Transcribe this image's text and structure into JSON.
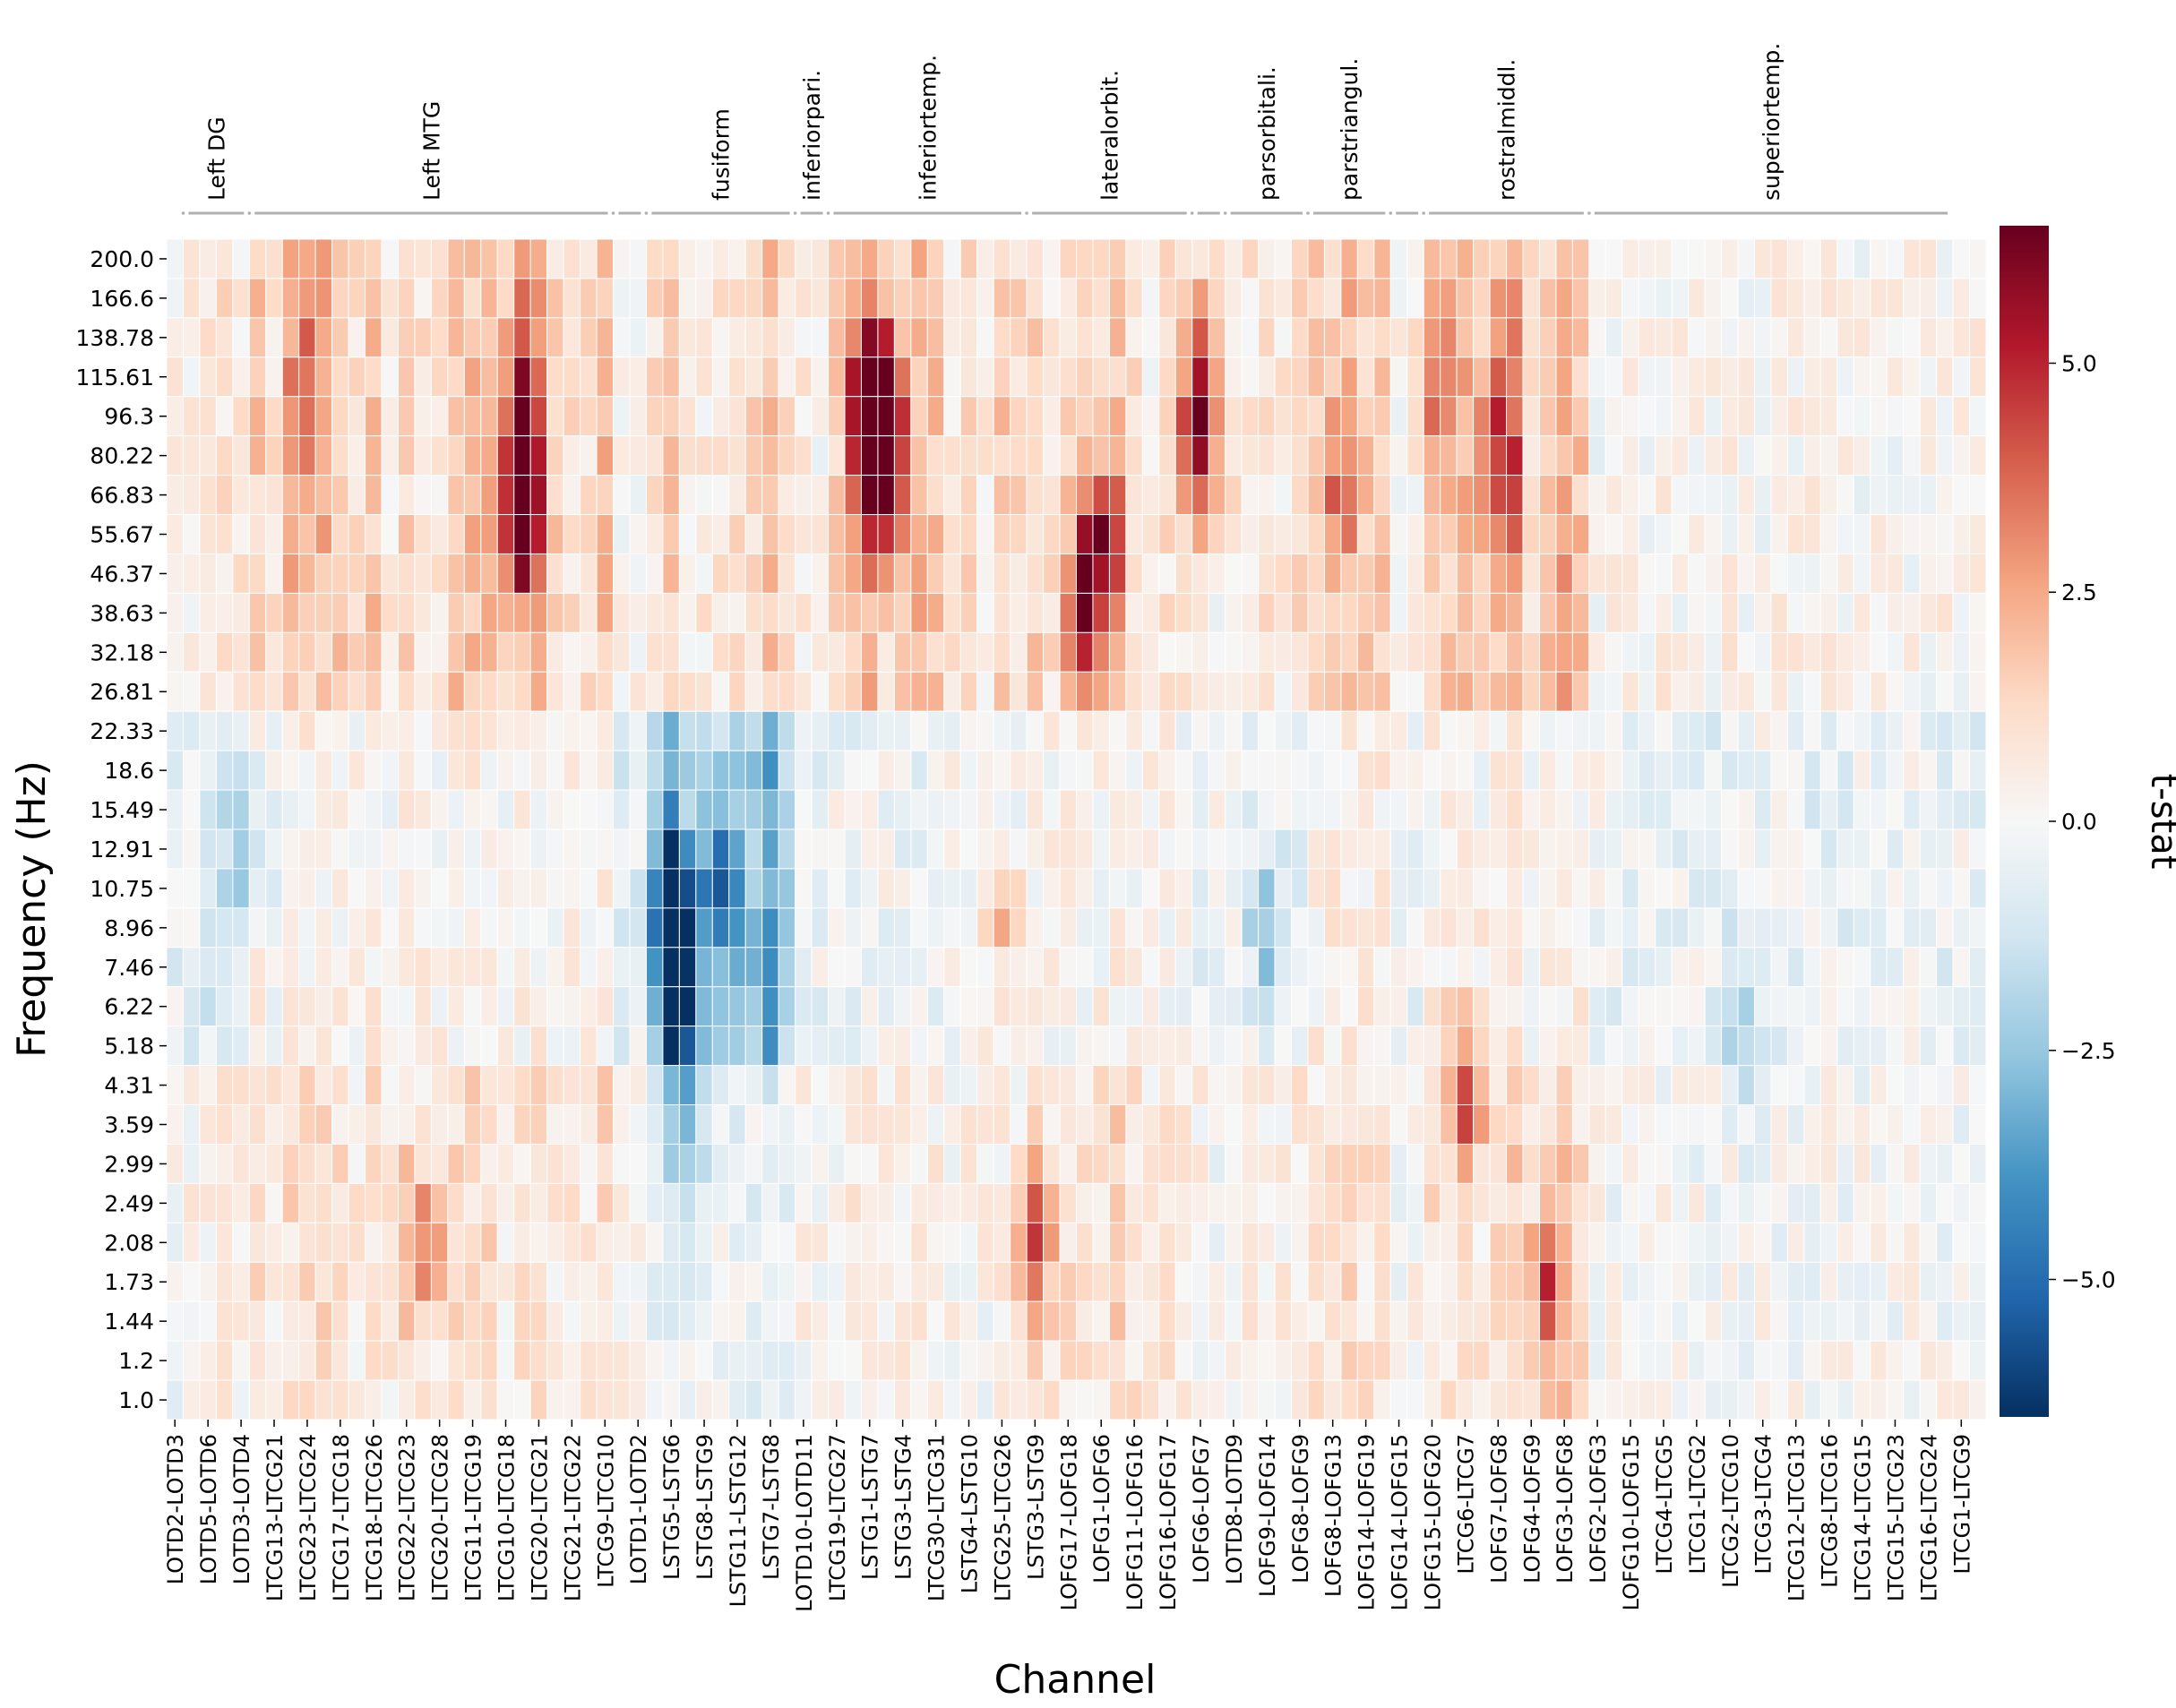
{
  "chart_data": {
    "type": "heatmap",
    "xlabel": "Channel",
    "ylabel": "Frequency (Hz)",
    "colorbar_label": "t-stat",
    "color_range": [
      -6.5,
      6.5
    ],
    "colorbar_ticks": [
      "5.0",
      "2.5",
      "0.0",
      "−2.5",
      "−5.0"
    ],
    "colorbar_tick_values": [
      5.0,
      2.5,
      0.0,
      -2.5,
      -5.0
    ],
    "colormap": [
      "#053061",
      "#2166ac",
      "#4393c3",
      "#92c5de",
      "#d1e5f0",
      "#f7f7f7",
      "#fddbc7",
      "#f4a582",
      "#d6604d",
      "#b2182b",
      "#67001f"
    ],
    "frequencies": [
      "200.0",
      "166.6",
      "138.78",
      "115.61",
      "96.3",
      "80.22",
      "66.83",
      "55.67",
      "46.37",
      "38.63",
      "32.18",
      "26.81",
      "22.33",
      "18.6",
      "15.49",
      "12.91",
      "10.75",
      "8.96",
      "7.46",
      "6.22",
      "5.18",
      "4.31",
      "3.59",
      "2.99",
      "2.49",
      "2.08",
      "1.73",
      "1.44",
      "1.2",
      "1.0"
    ],
    "channel_labels": [
      "LOTD2-LOTD3",
      "LOTD5-LOTD6",
      "LOTD3-LOTD4",
      "LTCG13-LTCG21",
      "LTCG23-LTCG24",
      "LTCG17-LTCG18",
      "LTCG18-LTCG26",
      "LTCG22-LTCG23",
      "LTCG20-LTCG28",
      "LTCG11-LTCG19",
      "LTCG10-LTCG18",
      "LTCG20-LTCG21",
      "LTCG21-LTCG22",
      "LTCG9-LTCG10",
      "LOTD1-LOTD2",
      "LSTG5-LSTG6",
      "LSTG8-LSTG9",
      "LSTG11-LSTG12",
      "LSTG7-LSTG8",
      "LOTD10-LOTD11",
      "LTCG19-LTCG27",
      "LSTG1-LSTG7",
      "LSTG3-LSTG4",
      "LTCG30-LTCG31",
      "LSTG4-LSTG10",
      "LTCG25-LTCG26",
      "LSTG3-LSTG9",
      "LOFG17-LOFG18",
      "LOFG1-LOFG6",
      "LOFG11-LOFG16",
      "LOFG16-LOFG17",
      "LOFG6-LOFG7",
      "LOTD8-LOTD9",
      "LOFG9-LOFG14",
      "LOFG8-LOFG9",
      "LOFG8-LOFG13",
      "LOFG14-LOFG19",
      "LOFG14-LOFG15",
      "LOFG15-LOFG20",
      "LTCG6-LTCG7",
      "LOFG7-LOFG8",
      "LOFG4-LOFG9",
      "LOFG3-LOFG8",
      "LOFG2-LOFG3",
      "LOFG10-LOFG15",
      "LTCG4-LTCG5",
      "LTCG1-LTCG2",
      "LTCG2-LTCG10",
      "LTCG3-LTCG4",
      "LTCG12-LTCG13",
      "LTCG8-LTCG16",
      "LTCG14-LTCG15",
      "LTCG15-LTCG23",
      "LTCG16-LTCG24",
      "LTCG1-LTCG9"
    ],
    "n_channels": 110,
    "regions": [
      {
        "name": "Left DG",
        "start": 1,
        "end": 5
      },
      {
        "name": "Left MTG",
        "start": 5,
        "end": 27
      },
      {
        "name": "",
        "start": 27,
        "end": 29
      },
      {
        "name": "fusiform",
        "start": 29,
        "end": 38
      },
      {
        "name": "inferiorpari.",
        "start": 38,
        "end": 40
      },
      {
        "name": "inferiortemp.",
        "start": 40,
        "end": 52
      },
      {
        "name": "lateralorbit.",
        "start": 52,
        "end": 62
      },
      {
        "name": "",
        "start": 62,
        "end": 64
      },
      {
        "name": "parsorbitali.",
        "start": 64,
        "end": 69
      },
      {
        "name": "parstriangul.",
        "start": 69,
        "end": 74
      },
      {
        "name": "",
        "start": 74,
        "end": 76
      },
      {
        "name": "rostralmiddl.",
        "start": 76,
        "end": 86
      },
      {
        "name": "superiortemp.",
        "start": 86,
        "end": 108
      }
    ],
    "hotspots": [
      {
        "c": 21,
        "f": 4,
        "s": 3,
        "v": 5.5
      },
      {
        "c": 21,
        "f": 7,
        "s": 2,
        "v": 4.5
      },
      {
        "c": 42,
        "f": 4,
        "s": 2.5,
        "v": 6.0
      },
      {
        "c": 43,
        "f": 5,
        "s": 3,
        "v": 5.0
      },
      {
        "c": 55,
        "f": 9,
        "s": 2,
        "v": 4.8
      },
      {
        "c": 56,
        "f": 7,
        "s": 2,
        "v": 4.2
      },
      {
        "c": 62,
        "f": 4,
        "s": 3,
        "v": 6.0
      },
      {
        "c": 80,
        "f": 5,
        "s": 3,
        "v": 3.5
      },
      {
        "c": 30,
        "f": 17,
        "s": 2.5,
        "v": -5.5
      },
      {
        "c": 31,
        "f": 20,
        "s": 4,
        "v": -4.0
      },
      {
        "c": 33,
        "f": 16,
        "s": 2,
        "v": -3.5
      },
      {
        "c": 15,
        "f": 25,
        "s": 2,
        "v": 3.0
      },
      {
        "c": 52,
        "f": 25,
        "s": 2,
        "v": 3.5
      },
      {
        "c": 78,
        "f": 21,
        "s": 2,
        "v": 3.5
      },
      {
        "c": 83,
        "f": 26,
        "s": 2,
        "v": 3.5
      },
      {
        "c": 8,
        "f": 4,
        "s": 3,
        "v": 2.5
      },
      {
        "c": 76,
        "f": 3,
        "s": 2,
        "v": 2.0
      },
      {
        "c": 70,
        "f": 6,
        "s": 2,
        "v": 2.0
      },
      {
        "c": 50,
        "f": 17,
        "s": 2,
        "v": 2.0
      },
      {
        "c": 66,
        "f": 17,
        "s": 2,
        "v": -2.5
      },
      {
        "c": 5,
        "f": 15,
        "s": 2,
        "v": -2.0
      },
      {
        "c": 95,
        "f": 20,
        "s": 2,
        "v": -2.0
      }
    ]
  }
}
